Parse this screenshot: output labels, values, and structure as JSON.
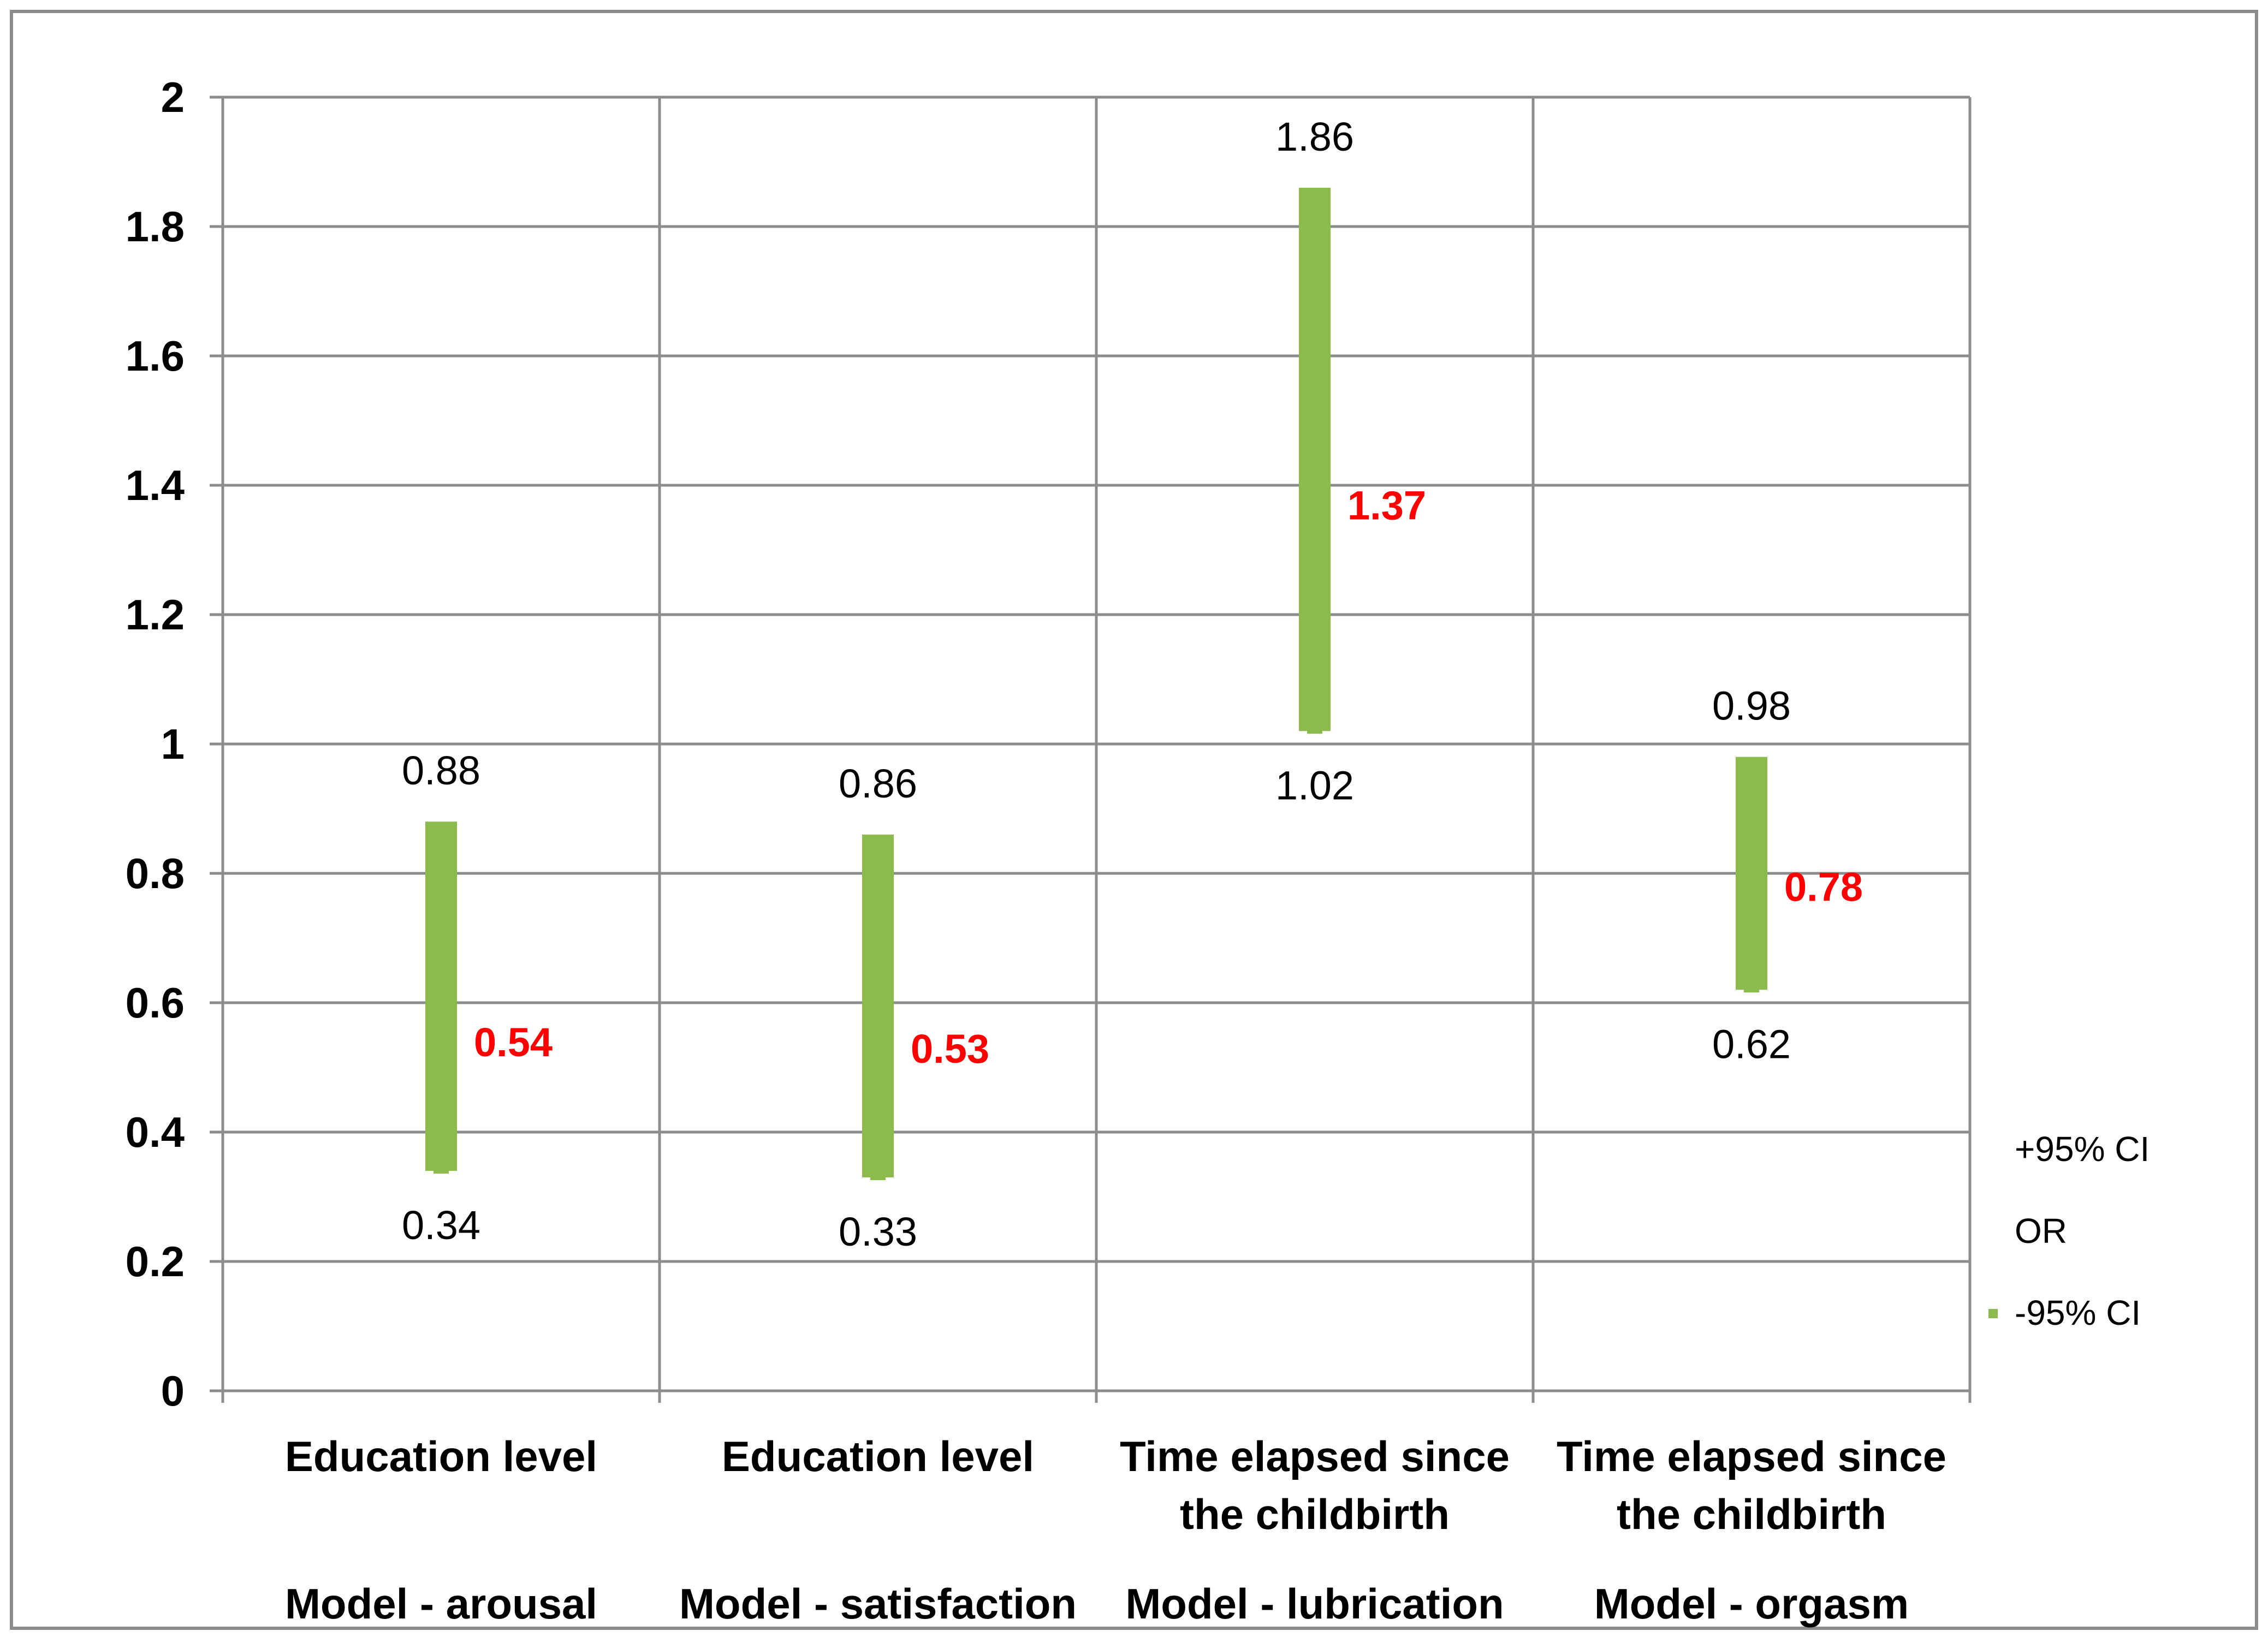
{
  "chart_data": {
    "type": "bar",
    "subtype": "high-low-close",
    "ylim": [
      0,
      2
    ],
    "y_ticks": [
      "0",
      "0.2",
      "0.4",
      "0.6",
      "0.8",
      "1",
      "1.2",
      "1.4",
      "1.6",
      "1.8",
      "2"
    ],
    "grid": true,
    "legend_position": "right",
    "categories": [
      {
        "factor": [
          "Education level"
        ],
        "model": "Model - arousal"
      },
      {
        "factor": [
          "Education level"
        ],
        "model": "Model - satisfaction"
      },
      {
        "factor": [
          "Time elapsed since",
          "the childbirth"
        ],
        "model": "Model - lubrication"
      },
      {
        "factor": [
          "Time elapsed since",
          "the childbirth"
        ],
        "model": "Model - orgasm"
      }
    ],
    "series": [
      {
        "name": "+95% CI",
        "values": [
          0.88,
          0.86,
          1.86,
          0.98
        ],
        "labels": [
          "0.88",
          "0.86",
          "1.86",
          "0.98"
        ]
      },
      {
        "name": "OR",
        "values": [
          0.54,
          0.53,
          1.37,
          0.78
        ],
        "labels": [
          "0.54",
          "0.53",
          "1.37",
          "0.78"
        ]
      },
      {
        "name": "-95% CI",
        "values": [
          0.34,
          0.33,
          1.02,
          0.62
        ],
        "labels": [
          "0.34",
          "0.33",
          "1.02",
          "0.62"
        ]
      }
    ],
    "colors": {
      "bar": "#8cba4c",
      "or_label": "#ff0000",
      "grid": "#8c8c8c"
    }
  }
}
